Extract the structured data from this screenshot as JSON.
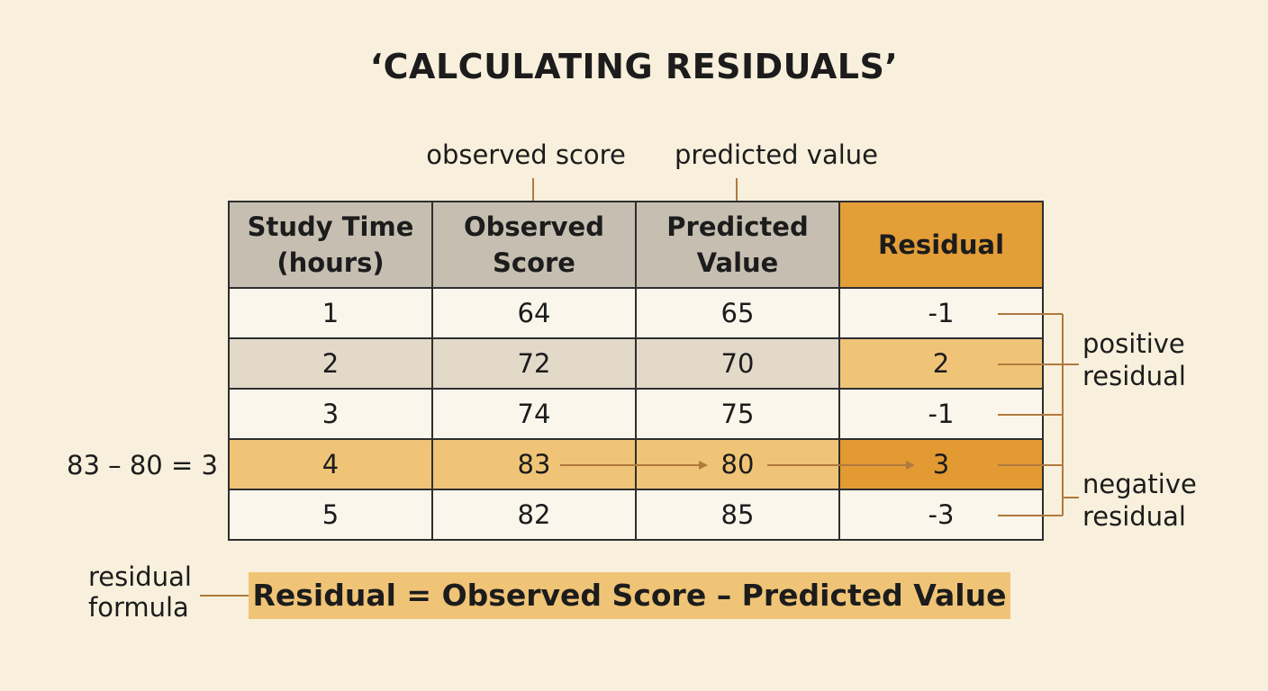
{
  "title": "‘CALCULATING RESIDUALS’",
  "callouts": {
    "observed": "observed score",
    "predicted": "predicted value"
  },
  "table": {
    "headers": {
      "study_time_line1": "Study Time",
      "study_time_line2": "(hours)",
      "observed_line1": "Observed",
      "observed_line2": "Score",
      "predicted_line1": "Predicted",
      "predicted_line2": "Value",
      "residual": "Residual"
    },
    "rows": [
      {
        "study_time": "1",
        "observed": "64",
        "predicted": "65",
        "residual": "-1"
      },
      {
        "study_time": "2",
        "observed": "72",
        "predicted": "70",
        "residual": "2"
      },
      {
        "study_time": "3",
        "observed": "74",
        "predicted": "75",
        "residual": "-1"
      },
      {
        "study_time": "4",
        "observed": "83",
        "predicted": "80",
        "residual": "3"
      },
      {
        "study_time": "5",
        "observed": "82",
        "predicted": "85",
        "residual": "-3"
      }
    ]
  },
  "calculation_example": "83 – 80 = 3",
  "annotations": {
    "positive_line1": "positive",
    "positive_line2": "residual",
    "negative_line1": "negative",
    "negative_line2": "residual"
  },
  "formula": {
    "label_line1": "residual",
    "label_line2": "formula",
    "text": "Residual = Observed Score – Predicted Value"
  },
  "colors": {
    "background": "#f8f0dc",
    "header_gray": "#c6bfb1",
    "accent_orange": "#e39e38",
    "highlight_light": "#f0c477",
    "connector_brown": "#b07a3e"
  }
}
